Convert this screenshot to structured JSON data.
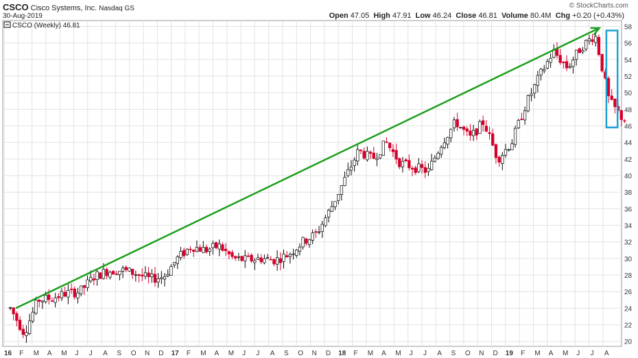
{
  "header": {
    "symbol": "CSCO",
    "company": "Cisco Systems, Inc.",
    "exchange": "Nasdaq GS",
    "date": "30-Aug-2019",
    "watermark": "© StockCharts.com",
    "open_label": "Open",
    "open_value": "47.05",
    "high_label": "High",
    "high_value": "47.91",
    "low_label": "Low",
    "low_value": "46.24",
    "close_label": "Close",
    "close_value": "46.81",
    "volume_label": "Volume",
    "volume_value": "80.4M",
    "chg_label": "Chg",
    "chg_value": "+0.20 (+0.43%)",
    "legend_text": "CSCO (Weekly) 46.81"
  },
  "chart_data": {
    "type": "candlestick",
    "title": "",
    "series_name": "CSCO (Weekly)",
    "y_ticks": [
      20,
      22,
      24,
      26,
      28,
      30,
      32,
      34,
      36,
      38,
      40,
      42,
      44,
      46,
      48,
      50,
      52,
      54,
      56,
      58
    ],
    "ylim": [
      19.4,
      58.7
    ],
    "x_ticks": [
      "16",
      "F",
      "M",
      "A",
      "M",
      "J",
      "J",
      "A",
      "S",
      "O",
      "N",
      "D",
      "17",
      "F",
      "M",
      "A",
      "M",
      "J",
      "J",
      "A",
      "S",
      "O",
      "N",
      "D",
      "18",
      "F",
      "M",
      "A",
      "M",
      "J",
      "J",
      "A",
      "S",
      "O",
      "N",
      "D",
      "19",
      "F",
      "M",
      "A",
      "M",
      "J",
      "J",
      "A"
    ],
    "x_range_months": [
      "2016-01",
      "2019-09"
    ],
    "grid": true,
    "axis_side": "right",
    "colors": {
      "up": "#ffffff",
      "up_border": "#000000",
      "down": "#d6002a",
      "trend_arrow": "#1a9e1a",
      "highlight_box": "#1e9fd6"
    },
    "trend_arrow": {
      "from": [
        "2016-01",
        24.0
      ],
      "to": [
        "2019-07",
        57.8
      ]
    },
    "highlight_box": {
      "from": [
        "2019-08",
        45.8
      ],
      "to": [
        "2019-09",
        57.5
      ]
    },
    "weekly_close_path": [
      [
        "2016-01",
        24.0
      ],
      [
        "2016-02",
        21.0
      ],
      [
        "2016-03",
        25.0
      ],
      [
        "2016-04",
        25.2
      ],
      [
        "2016-05",
        25.8
      ],
      [
        "2016-06",
        26.0
      ],
      [
        "2016-07",
        27.8
      ],
      [
        "2016-08",
        28.5
      ],
      [
        "2016-09",
        28.6
      ],
      [
        "2016-10",
        28.2
      ],
      [
        "2016-11",
        27.5
      ],
      [
        "2016-12",
        27.8
      ],
      [
        "2017-01",
        30.0
      ],
      [
        "2017-02",
        31.5
      ],
      [
        "2017-03",
        31.0
      ],
      [
        "2017-04",
        31.5
      ],
      [
        "2017-05",
        30.0
      ],
      [
        "2017-06",
        29.8
      ],
      [
        "2017-07",
        30.0
      ],
      [
        "2017-08",
        29.8
      ],
      [
        "2017-09",
        30.5
      ],
      [
        "2017-10",
        32.0
      ],
      [
        "2017-11",
        33.0
      ],
      [
        "2017-12",
        36.0
      ],
      [
        "2018-01",
        39.5
      ],
      [
        "2018-02",
        43.0
      ],
      [
        "2018-03",
        42.0
      ],
      [
        "2018-04",
        44.0
      ],
      [
        "2018-05",
        41.5
      ],
      [
        "2018-06",
        41.0
      ],
      [
        "2018-07",
        40.5
      ],
      [
        "2018-08",
        44.0
      ],
      [
        "2018-09",
        46.5
      ],
      [
        "2018-10",
        44.5
      ],
      [
        "2018-11",
        46.5
      ],
      [
        "2018-12",
        42.0
      ],
      [
        "2019-01",
        44.0
      ],
      [
        "2019-02",
        48.5
      ],
      [
        "2019-03",
        52.0
      ],
      [
        "2019-04",
        55.0
      ],
      [
        "2019-05",
        53.0
      ],
      [
        "2019-06",
        55.5
      ],
      [
        "2019-07",
        57.0
      ],
      [
        "2019-08",
        49.0
      ],
      [
        "2019-09",
        46.81
      ]
    ]
  }
}
